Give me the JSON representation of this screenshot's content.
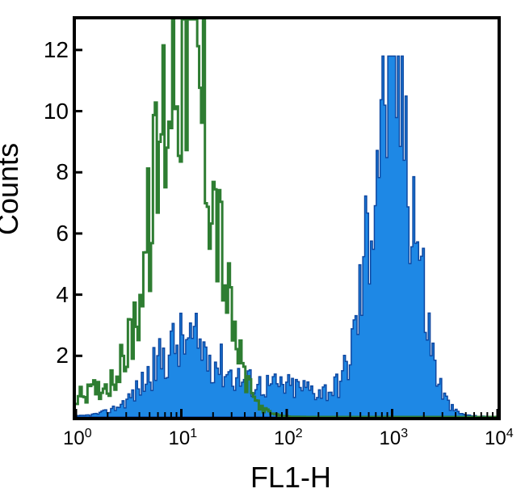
{
  "chart": {
    "type": "histogram",
    "xlabel": "FL1-H",
    "ylabel": "Counts",
    "xlim": [
      1,
      10000
    ],
    "ylim": [
      0,
      13
    ],
    "x_scale": "log",
    "y_scale": "linear",
    "y_ticks": [
      2,
      4,
      6,
      8,
      10,
      12
    ],
    "x_ticks_exp": [
      0,
      1,
      2,
      3,
      4
    ],
    "background_color": "#ffffff",
    "border_color": "#000000",
    "border_width": 4,
    "label_fontsize": 36,
    "tick_fontsize": 28,
    "series": [
      {
        "name": "filled-blue",
        "color": "#1e88e5",
        "stroke": "#0d47a1",
        "fill": true,
        "opacity": 1.0
      },
      {
        "name": "line-green",
        "color": "#2e7d32",
        "stroke": "#2e7d32",
        "fill": false,
        "stroke_width": 3
      }
    ]
  }
}
